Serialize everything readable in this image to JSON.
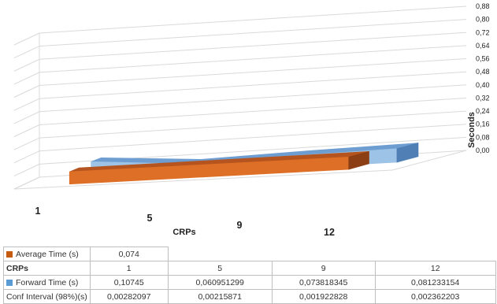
{
  "chart_data": {
    "type": "3d-area",
    "categories": [
      "1",
      "5",
      "9",
      "12"
    ],
    "xlabel": "CRPs",
    "ylabel": "Seconds",
    "yticks": [
      "0,00",
      "0,08",
      "0,16",
      "0,24",
      "0,32",
      "0,40",
      "0,48",
      "0,56",
      "0,64",
      "0,72",
      "0,80",
      "0,88"
    ],
    "ylim": [
      0,
      0.88
    ],
    "grid": true,
    "legend": "table-below",
    "series": [
      {
        "name": "Average Time   (s)",
        "values": [
          0.074,
          0.074,
          0.074,
          0.074
        ],
        "color": "#c55a11",
        "table_values": [
          "0,074"
        ]
      },
      {
        "name": "Forward Time   (s)",
        "values": [
          0.10745,
          0.060951299,
          0.073818345,
          0.081233154
        ],
        "color": "#5b9bd5",
        "table_values": [
          "0,10745",
          "0,060951299",
          "0,073818345",
          "0,081233154"
        ]
      }
    ],
    "table": {
      "row_header": "CRPs",
      "conf_label": "Conf Interval (98%)(s)",
      "conf_values": [
        "0,00282097",
        "0,00215871",
        "0,001922828",
        "0,002362203"
      ]
    }
  }
}
